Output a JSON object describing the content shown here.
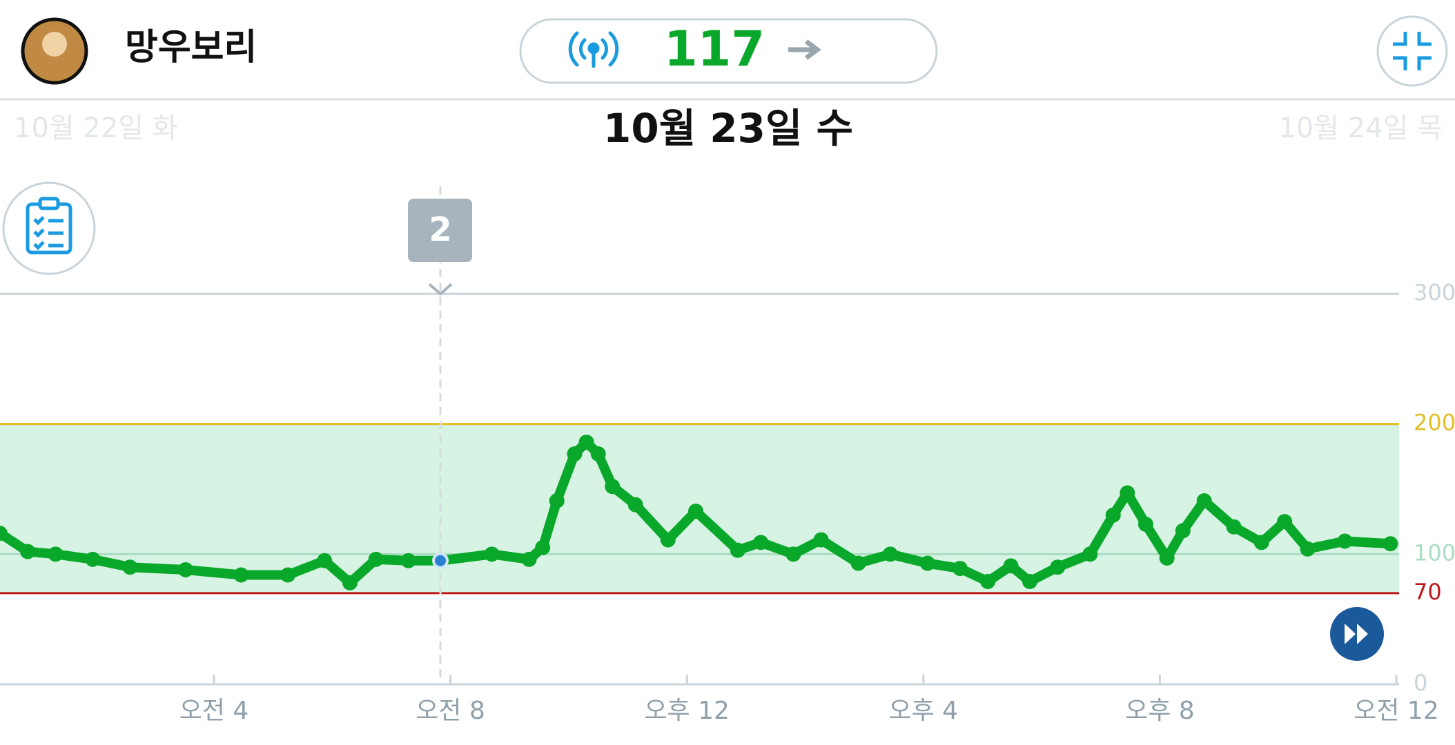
{
  "header": {
    "name": "망우보리",
    "glucose": 117
  },
  "dates": {
    "previous": "10월 22일 화",
    "current": "10월 23일 수",
    "next": "10월 24일 목"
  },
  "chart_data": {
    "type": "line",
    "x": [
      0.38,
      0.85,
      1.32,
      1.95,
      2.58,
      3.52,
      4.46,
      5.25,
      5.87,
      6.3,
      6.74,
      7.29,
      7.83,
      8.7,
      9.33,
      9.56,
      9.8,
      10.1,
      10.3,
      10.5,
      10.74,
      11.13,
      11.68,
      12.15,
      12.86,
      13.25,
      13.8,
      14.27,
      14.9,
      15.44,
      16.07,
      16.62,
      17.09,
      17.48,
      17.8,
      18.27,
      18.82,
      19.21,
      19.45,
      19.76,
      20.12,
      20.39,
      20.75,
      21.25,
      21.72,
      22.11,
      22.5,
      23.13,
      23.9
    ],
    "values": [
      116,
      102,
      100,
      96,
      90,
      88,
      84,
      84,
      95,
      78,
      96,
      95,
      95,
      100,
      96,
      105,
      141,
      177,
      186,
      177,
      152,
      138,
      111,
      133,
      103,
      109,
      100,
      111,
      93,
      100,
      93,
      89,
      79,
      91,
      79,
      90,
      100,
      130,
      147,
      123,
      97,
      118,
      141,
      121,
      109,
      125,
      104,
      110,
      108
    ],
    "color": "#0aa82a",
    "selected": {
      "x": 7.83,
      "y": 95,
      "color": "#2a7fd0"
    },
    "event": {
      "label": "2",
      "x": 7.83
    },
    "xlim": [
      0,
      24
    ],
    "xticks": [
      {
        "value": 4,
        "label": "오전 4"
      },
      {
        "value": 8,
        "label": "오전 8"
      },
      {
        "value": 12,
        "label": "오후 12"
      },
      {
        "value": 16,
        "label": "오후 4"
      },
      {
        "value": 20,
        "label": "오후 8"
      },
      {
        "value": 24,
        "label": "오전 12"
      }
    ],
    "ylim": [
      0,
      300
    ],
    "yticks": [
      0,
      70,
      100,
      200,
      300
    ],
    "target_range": [
      70,
      200
    ],
    "target_color": "#d6f3e3",
    "reference_lines": [
      {
        "value": 200,
        "color": "#e4bd22"
      },
      {
        "value": 100,
        "color": "#a9dcc1"
      },
      {
        "value": 70,
        "color": "#c01818"
      }
    ],
    "grid_color": "#c9d3da"
  }
}
